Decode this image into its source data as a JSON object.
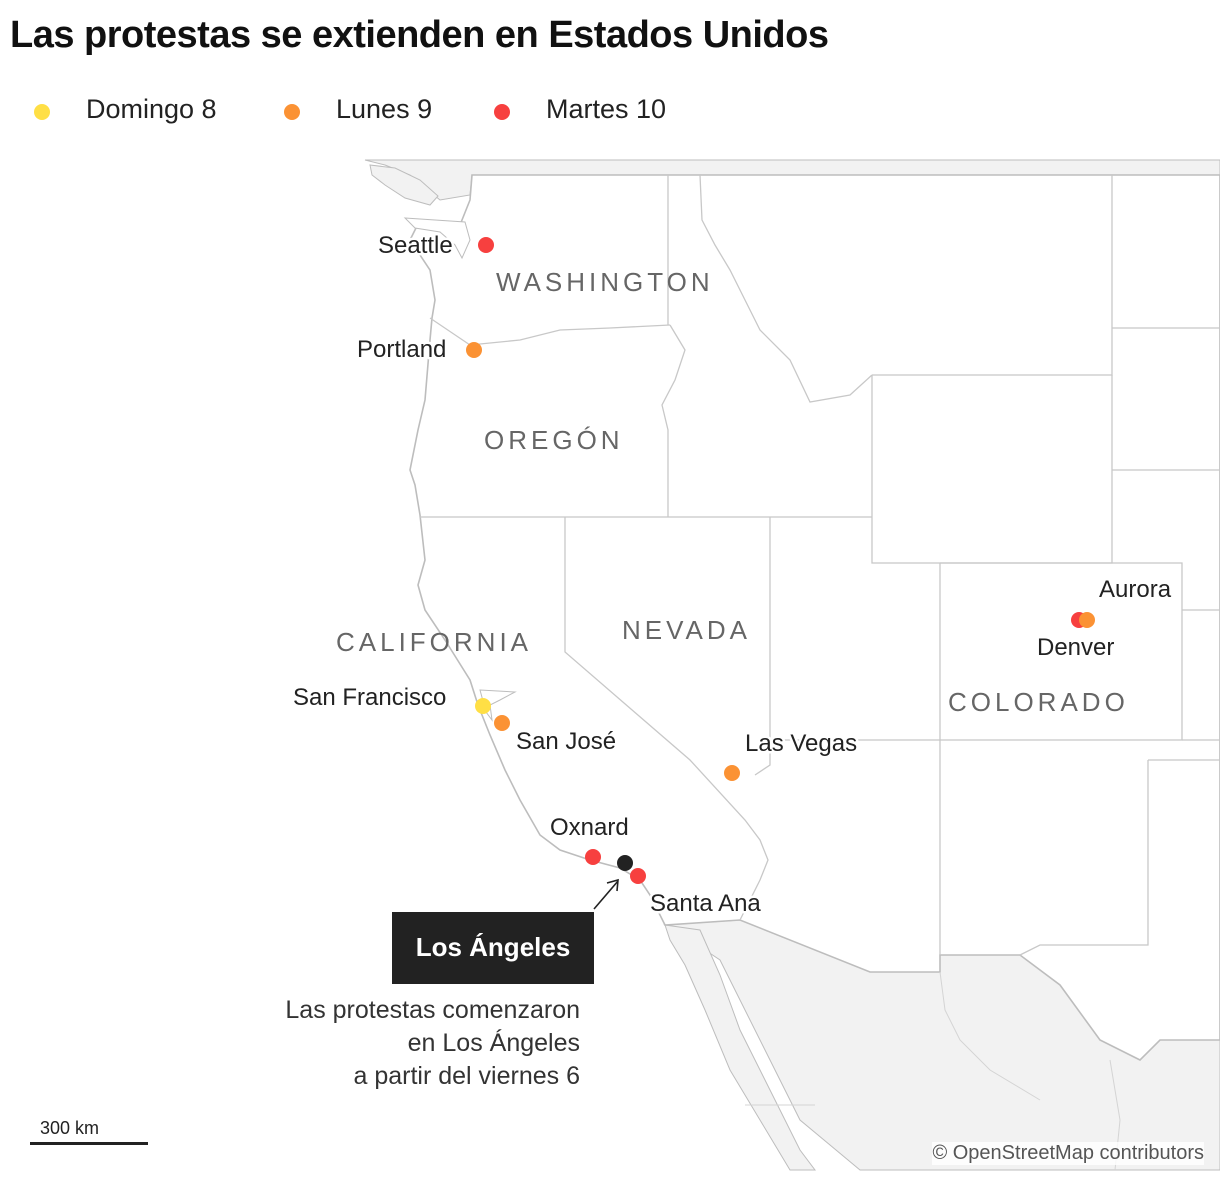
{
  "title": "Las protestas se extienden en Estados Unidos",
  "colors": {
    "sunday": "#ffdf45",
    "monday": "#fb9234",
    "tuesday": "#f7403f",
    "start": "#222222",
    "land": "#ffffff",
    "foreign_land": "#f2f2f2",
    "border": "#bdbdbd"
  },
  "legend": [
    {
      "label": "Domingo 8",
      "color": "#ffdf45"
    },
    {
      "label": "Lunes 9",
      "color": "#fb9234"
    },
    {
      "label": "Martes 10",
      "color": "#f7403f"
    }
  ],
  "states": {
    "washington": "WASHINGTON",
    "oregon": "OREGÓN",
    "california": "CALIFORNIA",
    "nevada": "NEVADA",
    "colorado": "COLORADO"
  },
  "cities": {
    "seattle": {
      "label": "Seattle",
      "day": "Martes 10"
    },
    "portland": {
      "label": "Portland",
      "day": "Lunes 9"
    },
    "san_francisco": {
      "label": "San Francisco",
      "day": "Domingo 8"
    },
    "san_jose": {
      "label": "San José",
      "day": "Lunes 9"
    },
    "las_vegas": {
      "label": "Las Vegas",
      "day": "Lunes 9"
    },
    "oxnard": {
      "label": "Oxnard",
      "day": "Martes 10"
    },
    "santa_ana": {
      "label": "Santa Ana",
      "day": "Martes 10"
    },
    "aurora": {
      "label": "Aurora",
      "day": "Lunes 9"
    },
    "denver": {
      "label": "Denver",
      "day": "Martes 10"
    }
  },
  "los_angeles": {
    "label": "Los Ángeles",
    "note": [
      "Las protestas comenzaron",
      "en Los Ángeles",
      "a partir del viernes 6"
    ]
  },
  "scale_label": "300 km",
  "credit": "© OpenStreetMap contributors"
}
